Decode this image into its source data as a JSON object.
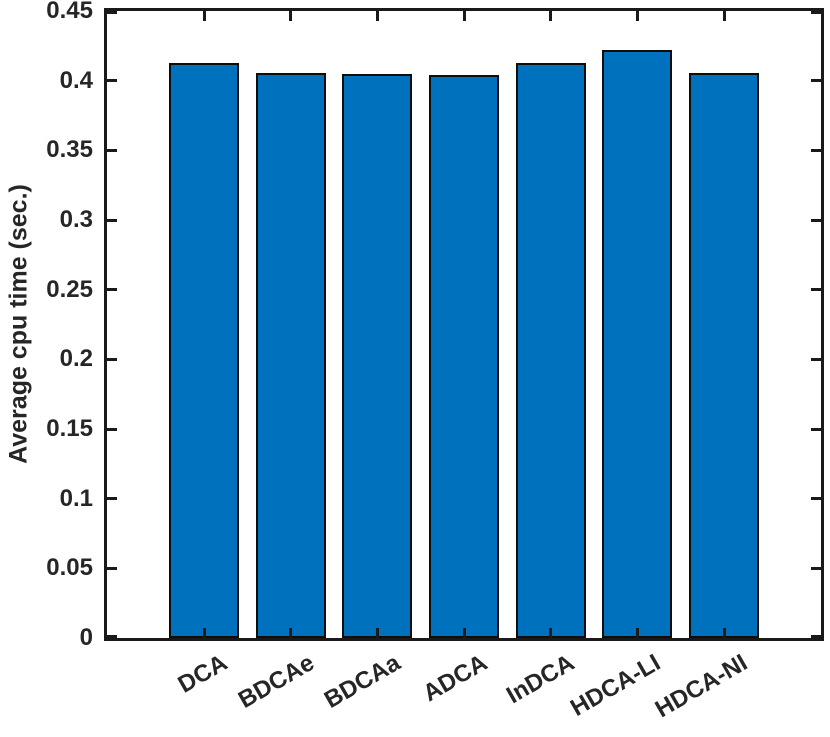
{
  "chart_data": {
    "type": "bar",
    "title": "",
    "xlabel": "",
    "ylabel": "Average cpu time (sec.)",
    "categories": [
      "DCA",
      "BDCAe",
      "BDCAa",
      "ADCA",
      "InDCA",
      "HDCA-LI",
      "HDCA-NI"
    ],
    "values": [
      0.413,
      0.4055,
      0.4045,
      0.404,
      0.413,
      0.422,
      0.4055
    ],
    "ylim": [
      0,
      0.45
    ],
    "yticks": [
      0,
      0.05,
      0.1,
      0.15,
      0.2,
      0.25,
      0.3,
      0.35,
      0.4,
      0.45
    ],
    "ytick_labels": [
      "0",
      "0.05",
      "0.1",
      "0.15",
      "0.2",
      "0.25",
      "0.3",
      "0.35",
      "0.4",
      "0.45"
    ],
    "x_tick_rotation_deg": -30,
    "grid": false,
    "box": "on",
    "tick_direction": "in",
    "bar_color": "#0072BD",
    "bar_edge_color": "#0d0d0d",
    "axis_color": "#1a1a1a",
    "tick_label_color": "#262626",
    "background_color": "#ffffff"
  }
}
